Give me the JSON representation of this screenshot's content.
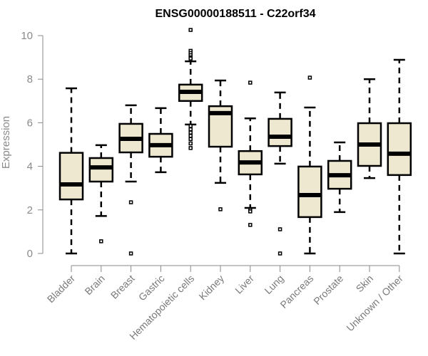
{
  "chart_data": {
    "type": "boxplot",
    "title": "ENSG00000188511 - C22orf34",
    "xlabel": "",
    "ylabel": "Expression",
    "ylim": [
      0,
      10
    ],
    "yticks": [
      0,
      2,
      4,
      6,
      8,
      10
    ],
    "box_fill": "#ede8cf",
    "grid": false,
    "categories": [
      "Bladder",
      "Brain",
      "Breast",
      "Gastric",
      "Hematopoietic cells",
      "Kidney",
      "Liver",
      "Lung",
      "Pancreas",
      "Prostate",
      "Skin",
      "Unknown / Other"
    ],
    "boxes": [
      {
        "name": "Bladder",
        "whisker_low": 0,
        "q1": 2.48,
        "median": 3.17,
        "q3": 4.62,
        "whisker_high": 7.58,
        "outliers": []
      },
      {
        "name": "Brain",
        "whisker_low": 1.72,
        "q1": 3.3,
        "median": 3.95,
        "q3": 4.38,
        "whisker_high": 4.97,
        "outliers": [
          0.56
        ]
      },
      {
        "name": "Breast",
        "whisker_low": 3.3,
        "q1": 4.64,
        "median": 5.26,
        "q3": 5.95,
        "whisker_high": 6.8,
        "outliers": [
          2.35,
          0
        ]
      },
      {
        "name": "Gastric",
        "whisker_low": 3.73,
        "q1": 4.44,
        "median": 4.97,
        "q3": 5.49,
        "whisker_high": 6.67,
        "outliers": []
      },
      {
        "name": "Hematopoietic cells",
        "whisker_low": 5.92,
        "q1": 7.0,
        "median": 7.42,
        "q3": 7.75,
        "whisker_high": 8.82,
        "outliers": [
          10.26,
          9.3,
          9.2,
          9.1,
          9.0,
          8.95,
          5.85,
          5.7,
          5.55,
          5.4,
          5.25,
          5.05,
          4.84
        ]
      },
      {
        "name": "Kidney",
        "whisker_low": 3.24,
        "q1": 4.9,
        "median": 6.44,
        "q3": 6.76,
        "whisker_high": 7.94,
        "outliers": [
          2.03
        ]
      },
      {
        "name": "Liver",
        "whisker_low": 2.09,
        "q1": 3.63,
        "median": 4.18,
        "q3": 4.7,
        "whisker_high": 6.2,
        "outliers": [
          7.84,
          2.0,
          1.93,
          1.31
        ]
      },
      {
        "name": "Lung",
        "whisker_low": 4.12,
        "q1": 4.93,
        "median": 5.36,
        "q3": 6.18,
        "whisker_high": 7.39,
        "outliers": [
          1.11,
          0
        ]
      },
      {
        "name": "Pancreas",
        "whisker_low": 0,
        "q1": 1.67,
        "median": 2.68,
        "q3": 3.99,
        "whisker_high": 6.7,
        "outliers": [
          8.07
        ]
      },
      {
        "name": "Prostate",
        "whisker_low": 1.9,
        "q1": 2.97,
        "median": 3.59,
        "q3": 4.25,
        "whisker_high": 5.1,
        "outliers": []
      },
      {
        "name": "Skin",
        "whisker_low": 3.46,
        "q1": 4.02,
        "median": 5.0,
        "q3": 5.98,
        "whisker_high": 8.0,
        "outliers": []
      },
      {
        "name": "Unknown / Other",
        "whisker_low": 0,
        "q1": 3.6,
        "median": 4.58,
        "q3": 5.98,
        "whisker_high": 8.89,
        "outliers": []
      }
    ]
  }
}
